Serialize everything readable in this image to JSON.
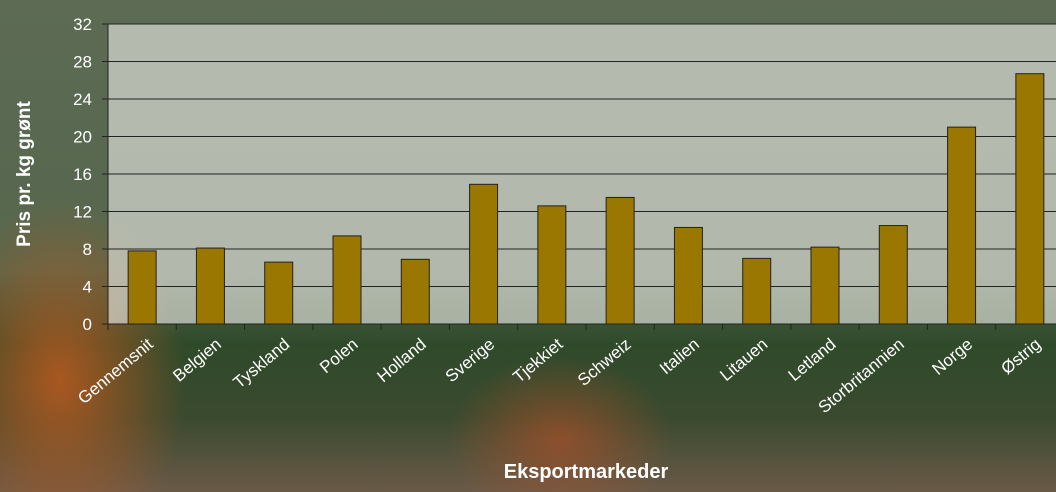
{
  "chart_data": {
    "type": "bar",
    "y_label": "Pris pr. kg grønt",
    "x_label": "Eksportmarkeder",
    "categories": [
      "Gennemsnit",
      "Belgien",
      "Tyskland",
      "Polen",
      "Holland",
      "Sverige",
      "Tjekkiet",
      "Schweiz",
      "Italien",
      "Litauen",
      "Letland",
      "Storbritannien",
      "Norge",
      "Østrig"
    ],
    "values": [
      7.8,
      8.1,
      6.6,
      9.4,
      6.9,
      14.9,
      12.6,
      13.5,
      10.3,
      7.0,
      8.2,
      10.5,
      21.0,
      26.7
    ],
    "color": "#9a7700",
    "ylim": [
      0,
      32
    ],
    "yticks": [
      0,
      4,
      8,
      12,
      16,
      20,
      24,
      28,
      32
    ],
    "grid": true
  }
}
